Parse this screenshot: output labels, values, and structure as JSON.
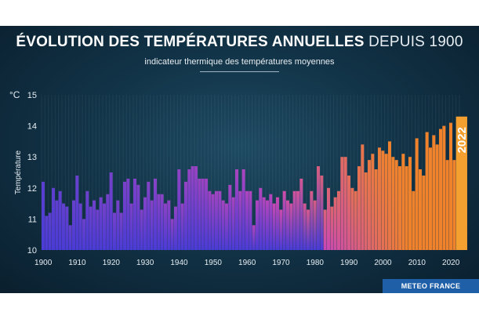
{
  "header": {
    "title_bold": "ÉVOLUTION DES TEMPÉRATURES ANNUELLES",
    "title_light": "DEPUIS 1900",
    "subtitle": "indicateur thermique des températures moyennes"
  },
  "brand": "METEO FRANCE",
  "colors": {
    "background": "#123448",
    "cool": "#5a3fd0",
    "mid": "#c846b8",
    "warm": "#f0822c",
    "highlight": "#f4a030"
  },
  "chart_data": {
    "type": "bar",
    "title": "ÉVOLUTION DES TEMPÉRATURES ANNUELLES DEPUIS 1900",
    "subtitle": "indicateur thermique des températures moyennes",
    "unit": "°C",
    "xlabel": "",
    "ylabel": "Température",
    "ylim": [
      10,
      15
    ],
    "yticks": [
      10,
      11,
      12,
      13,
      14,
      15
    ],
    "xticks": [
      1900,
      1910,
      1920,
      1930,
      1940,
      1950,
      1960,
      1970,
      1980,
      1990,
      2000,
      2010,
      2020
    ],
    "highlight": {
      "year": 2022,
      "label": "2022"
    },
    "categories": [
      1900,
      1901,
      1902,
      1903,
      1904,
      1905,
      1906,
      1907,
      1908,
      1909,
      1910,
      1911,
      1912,
      1913,
      1914,
      1915,
      1916,
      1917,
      1918,
      1919,
      1920,
      1921,
      1922,
      1923,
      1924,
      1925,
      1926,
      1927,
      1928,
      1929,
      1930,
      1931,
      1932,
      1933,
      1934,
      1935,
      1936,
      1937,
      1938,
      1939,
      1940,
      1941,
      1942,
      1943,
      1944,
      1945,
      1946,
      1947,
      1948,
      1949,
      1950,
      1951,
      1952,
      1953,
      1954,
      1955,
      1956,
      1957,
      1958,
      1959,
      1960,
      1961,
      1962,
      1963,
      1964,
      1965,
      1966,
      1967,
      1968,
      1969,
      1970,
      1971,
      1972,
      1973,
      1974,
      1975,
      1976,
      1977,
      1978,
      1979,
      1980,
      1981,
      1982,
      1983,
      1984,
      1985,
      1986,
      1987,
      1988,
      1989,
      1990,
      1991,
      1992,
      1993,
      1994,
      1995,
      1996,
      1997,
      1998,
      1999,
      2000,
      2001,
      2002,
      2003,
      2004,
      2005,
      2006,
      2007,
      2008,
      2009,
      2010,
      2011,
      2012,
      2013,
      2014,
      2015,
      2016,
      2017,
      2018,
      2019,
      2020,
      2021,
      2022
    ],
    "values": [
      12.2,
      11.1,
      11.2,
      12.0,
      11.6,
      11.9,
      11.5,
      11.4,
      10.8,
      11.6,
      12.4,
      11.5,
      11.0,
      11.9,
      11.4,
      11.6,
      11.3,
      11.7,
      11.5,
      11.8,
      12.5,
      11.2,
      11.6,
      11.2,
      12.2,
      12.3,
      11.5,
      12.3,
      12.1,
      11.3,
      11.7,
      12.2,
      11.6,
      12.3,
      11.8,
      11.8,
      11.5,
      11.6,
      11.0,
      11.4,
      12.6,
      11.5,
      12.2,
      12.6,
      12.7,
      12.7,
      12.3,
      12.3,
      12.3,
      11.9,
      11.8,
      11.9,
      11.9,
      11.6,
      11.5,
      12.1,
      11.7,
      12.6,
      11.9,
      12.6,
      11.9,
      11.9,
      10.8,
      11.6,
      12.0,
      11.7,
      11.6,
      11.8,
      11.5,
      11.7,
      11.3,
      11.9,
      11.6,
      11.5,
      11.9,
      11.9,
      12.3,
      11.5,
      11.3,
      11.9,
      11.6,
      12.7,
      12.4,
      11.3,
      12.0,
      11.4,
      11.7,
      11.9,
      13.0,
      13.0,
      12.4,
      12.0,
      11.9,
      12.7,
      13.4,
      12.5,
      12.9,
      13.1,
      12.6,
      13.3,
      13.2,
      13.1,
      13.5,
      13.0,
      12.9,
      12.7,
      13.1,
      12.7,
      13.0,
      11.9,
      13.6,
      12.6,
      12.4,
      13.8,
      13.3,
      13.7,
      13.4,
      13.9,
      14.0,
      12.9,
      14.1,
      12.9,
      14.3
    ]
  }
}
